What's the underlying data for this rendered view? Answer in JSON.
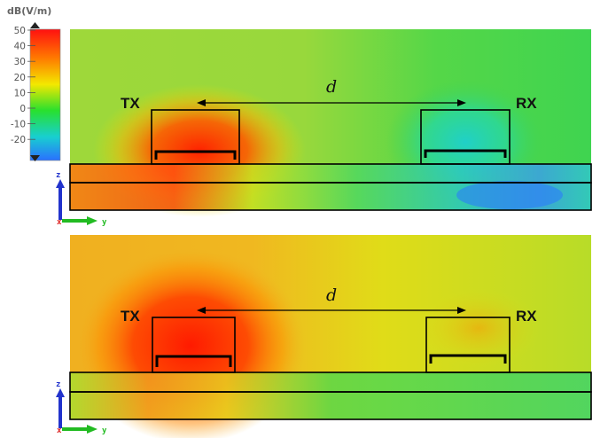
{
  "colorbar": {
    "unit": "dB(V/m)",
    "ticks": [
      "50",
      "40",
      "30",
      "20",
      "10",
      "0",
      "-10",
      "-20"
    ],
    "gradient": [
      "#ff1010",
      "#ff7a00",
      "#f3e800",
      "#28e02e",
      "#18cfd0",
      "#2a70ff"
    ]
  },
  "panels": [
    {
      "tx_label": "TX",
      "rx_label": "RX",
      "distance_label": "d",
      "axis_z": "z",
      "axis_x": "x",
      "axis_y": "y"
    },
    {
      "tx_label": "TX",
      "rx_label": "RX",
      "distance_label": "d",
      "axis_z": "z",
      "axis_x": "x",
      "axis_y": "y"
    }
  ],
  "colors": {
    "outline": "#000000",
    "axis_blue": "#2233cc",
    "axis_green": "#22bb22",
    "axis_red": "#dd2222"
  }
}
